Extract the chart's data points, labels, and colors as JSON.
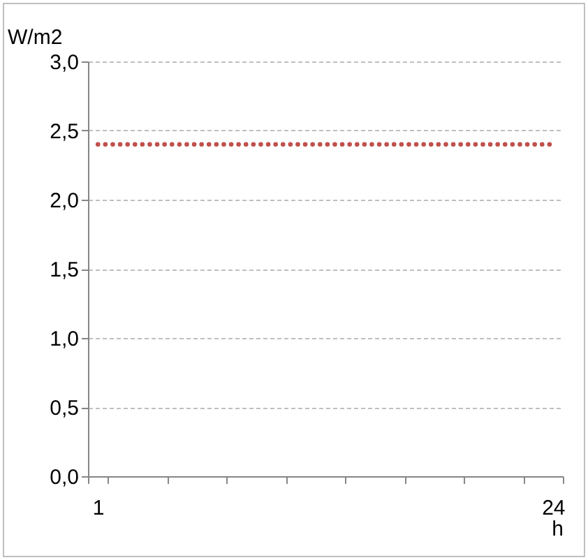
{
  "chart_data": {
    "type": "line",
    "xlabel": "h",
    "ylabel": "W/m2",
    "categories": [
      "1",
      null,
      null,
      null,
      null,
      null,
      null,
      null,
      null,
      null,
      null,
      null,
      null,
      null,
      null,
      null,
      null,
      null,
      null,
      null,
      null,
      null,
      null,
      "24"
    ],
    "series": [
      {
        "color": "#c0504d",
        "line_style": "dotted",
        "values": [
          2.4,
          2.4,
          2.4,
          2.4,
          2.4,
          2.4,
          2.4,
          2.4,
          2.4,
          2.4,
          2.4,
          2.4,
          2.4,
          2.4,
          2.4,
          2.4,
          2.4,
          2.4,
          2.4,
          2.4,
          2.4,
          2.4,
          2.4,
          2.4
        ]
      }
    ],
    "ylim": [
      0,
      3
    ],
    "yticks": [
      {
        "value": 0,
        "label": "0,0"
      },
      {
        "value": 0.5,
        "label": "0,5"
      },
      {
        "value": 1,
        "label": "1,0"
      },
      {
        "value": 1.5,
        "label": "1,5"
      },
      {
        "value": 2,
        "label": "2,0"
      },
      {
        "value": 2.5,
        "label": "2,5"
      },
      {
        "value": 3,
        "label": "3,0"
      }
    ],
    "grid": "y",
    "marker": "none"
  }
}
